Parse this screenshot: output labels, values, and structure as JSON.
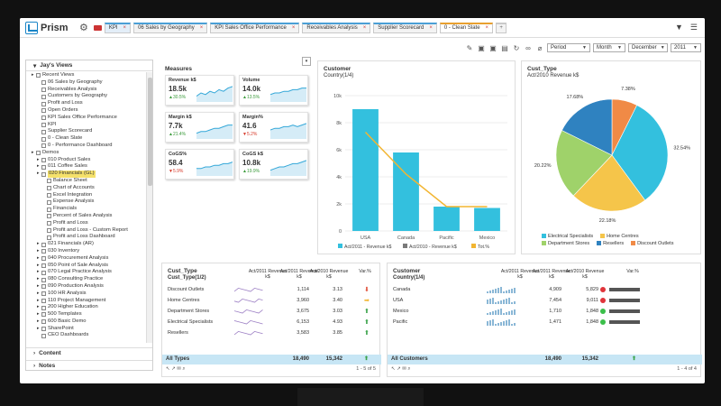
{
  "app": {
    "title": "Prism",
    "tabs": [
      {
        "label": "KPI",
        "kind": "kpi"
      },
      {
        "label": "06 Sales by Geography"
      },
      {
        "label": "KPI Sales Office Performance"
      },
      {
        "label": "Receivables Analysis"
      },
      {
        "label": "Supplier Scorecard"
      },
      {
        "label": "0 - Clean Slate",
        "active": true
      }
    ],
    "add_tab": "+"
  },
  "filters": {
    "period": "Period",
    "unit": "Month",
    "month": "December",
    "year": "2011"
  },
  "sidebar": {
    "title": "Jay's Views",
    "items": [
      {
        "label": "Recent Views",
        "lvl": 0,
        "folder": true
      },
      {
        "label": "06 Sales by Geography",
        "lvl": 1
      },
      {
        "label": "Receivables Analysis",
        "lvl": 1
      },
      {
        "label": "Customers by Geography",
        "lvl": 1
      },
      {
        "label": "Profit and Loss",
        "lvl": 1
      },
      {
        "label": "Open Orders",
        "lvl": 1
      },
      {
        "label": "KPI Sales Office Performance",
        "lvl": 1
      },
      {
        "label": "KPI",
        "lvl": 1
      },
      {
        "label": "Supplier Scorecard",
        "lvl": 1
      },
      {
        "label": "0 - Clean Slate",
        "lvl": 1
      },
      {
        "label": "0 - Performance Dashboard",
        "lvl": 1
      },
      {
        "label": "Demos",
        "lvl": 0,
        "folder": true
      },
      {
        "label": "010 Product Sales",
        "lvl": 1,
        "folder": true
      },
      {
        "label": "011 Coffee Sales",
        "lvl": 1,
        "folder": true
      },
      {
        "label": "020 Financials (GL)",
        "lvl": 1,
        "folder": true,
        "selected": true
      },
      {
        "label": "Balance Sheet",
        "lvl": 2
      },
      {
        "label": "Chart of Accounts",
        "lvl": 2
      },
      {
        "label": "Excel Integration",
        "lvl": 2
      },
      {
        "label": "Expense Analysis",
        "lvl": 2
      },
      {
        "label": "Financials",
        "lvl": 2
      },
      {
        "label": "Percent of Sales Analysis",
        "lvl": 2
      },
      {
        "label": "Profit and Loss",
        "lvl": 2
      },
      {
        "label": "Profit and Loss - Custom Report",
        "lvl": 2
      },
      {
        "label": "Profit and Loss Dashboard",
        "lvl": 2
      },
      {
        "label": "021 Financials (AR)",
        "lvl": 1,
        "folder": true
      },
      {
        "label": "030 Inventory",
        "lvl": 1,
        "folder": true
      },
      {
        "label": "040 Procurement Analysis",
        "lvl": 1,
        "folder": true
      },
      {
        "label": "050 Point of Sale Analysis",
        "lvl": 1,
        "folder": true
      },
      {
        "label": "070 Legal Practice Analysis",
        "lvl": 1,
        "folder": true
      },
      {
        "label": "080 Consulting Practice",
        "lvl": 1,
        "folder": true
      },
      {
        "label": "090 Production Analysis",
        "lvl": 1,
        "folder": true
      },
      {
        "label": "100 HR Analysis",
        "lvl": 1,
        "folder": true
      },
      {
        "label": "110 Project Management",
        "lvl": 1,
        "folder": true
      },
      {
        "label": "200 Higher Education",
        "lvl": 1,
        "folder": true
      },
      {
        "label": "500 Templates",
        "lvl": 1,
        "folder": true
      },
      {
        "label": "600 Basic Demo",
        "lvl": 1,
        "folder": true
      },
      {
        "label": "SharePoint",
        "lvl": 1,
        "folder": true
      },
      {
        "label": "CEO Dashboards",
        "lvl": 1
      }
    ],
    "footer": [
      "Content",
      "Notes"
    ]
  },
  "measures": {
    "title": "Measures",
    "cards": [
      {
        "name": "Revenue k$",
        "value": "18.5k",
        "change": "30.5%",
        "dir": "up"
      },
      {
        "name": "Volume",
        "value": "14.0k",
        "change": "13.5%",
        "dir": "up"
      },
      {
        "name": "Margin k$",
        "value": "7.7k",
        "change": "21.4%",
        "dir": "up"
      },
      {
        "name": "Margin%",
        "value": "41.6",
        "change": "5.2%",
        "dir": "dn"
      },
      {
        "name": "CoGS%",
        "value": "58.4",
        "change": "5.9%",
        "dir": "dn"
      },
      {
        "name": "CoGS k$",
        "value": "10.8k",
        "change": "19.9%",
        "dir": "up"
      }
    ]
  },
  "customer_chart": {
    "title": "Customer",
    "subtitle": "Country(1/4)",
    "legend": [
      "Act/2011 - Revenue k$",
      "Act/2010 - Revenue k$",
      "Tot.%"
    ]
  },
  "pie_chart": {
    "title": "Cust_Type",
    "subtitle": "Act/2010 Revenue k$",
    "legend": [
      {
        "label": "Electrical Specialists",
        "color": "#33c0de"
      },
      {
        "label": "Home Centres",
        "color": "#f5c54a"
      },
      {
        "label": "Department Stores",
        "color": "#9fd26a"
      },
      {
        "label": "Resellers",
        "color": "#2f82c0"
      },
      {
        "label": "Discount Outlets",
        "color": "#f08a46"
      }
    ]
  },
  "chart_data": [
    {
      "type": "bar",
      "title": "Customer",
      "subtitle": "Country(1/4)",
      "categories": [
        "USA",
        "Canada",
        "Pacific",
        "Mexico"
      ],
      "series": [
        {
          "name": "Act/2011 - Revenue k$",
          "values": [
            9000,
            5800,
            1800,
            1700
          ]
        },
        {
          "name": "Act/2010 - Revenue k$",
          "values": [
            9100,
            5850,
            1850,
            1750
          ]
        },
        {
          "name": "Tot.%",
          "values": [
            7300,
            4200,
            1800,
            1800
          ]
        }
      ],
      "ylim": [
        0,
        10000
      ],
      "yticks": [
        "0",
        "2k",
        "4k",
        "6k",
        "8k",
        "10k"
      ]
    },
    {
      "type": "pie",
      "title": "Cust_Type",
      "subtitle": "Act/2010 Revenue k$",
      "labels": [
        "Electrical Specialists",
        "Home Centres",
        "Department Stores",
        "Resellers",
        "Discount Outlets"
      ],
      "values": [
        32.54,
        22.18,
        20.22,
        17.68,
        7.38
      ],
      "value_labels": [
        "32.54%",
        "22.18%",
        "20.22%",
        "17.68%",
        "7.38%"
      ],
      "colors": [
        "#33c0de",
        "#f5c54a",
        "#9fd26a",
        "#2f82c0",
        "#f08a46"
      ]
    }
  ],
  "cust_type_table": {
    "title": "Cust_Type",
    "col0": "Cust_Type(1/2)",
    "headers": [
      "Act/2011 Revenue k$",
      "Act/2011 Revenue k$",
      "Act/2010 Revenue k$",
      "Var.%"
    ],
    "rows": [
      {
        "name": "Discount Outlets",
        "v1": "1,114",
        "v2": "3.13",
        "arrow": "dn"
      },
      {
        "name": "Home Centres",
        "v1": "3,960",
        "v2": "3.40",
        "arrow": "side"
      },
      {
        "name": "Department Stores",
        "v1": "3,675",
        "v2": "3.03",
        "arrow": "up"
      },
      {
        "name": "Electrical Specialists",
        "v1": "6,153",
        "v2": "4.93",
        "arrow": "up"
      },
      {
        "name": "Resellers",
        "v1": "3,583",
        "v2": "3.85",
        "arrow": "up"
      }
    ],
    "total": {
      "name": "All Types",
      "v1": "18,490",
      "v2": "15,342"
    },
    "pager": "1 - 5 of 5"
  },
  "customer_table": {
    "title": "Customer",
    "col0": "Country(1/4)",
    "headers": [
      "Act/2011 Revenue k$",
      "Act/2011 Revenue k$",
      "Act/2010 Revenue k$",
      "Var.%"
    ],
    "rows": [
      {
        "name": "Canada",
        "v1": "4,909",
        "v2": "5,829",
        "dot": "red"
      },
      {
        "name": "USA",
        "v1": "7,454",
        "v2": "9,011",
        "dot": "red"
      },
      {
        "name": "Mexico",
        "v1": "1,710",
        "v2": "1,848",
        "dot": "green"
      },
      {
        "name": "Pacific",
        "v1": "1,471",
        "v2": "1,848",
        "dot": "green"
      }
    ],
    "total": {
      "name": "All Customers",
      "v1": "18,490",
      "v2": "15,342"
    },
    "pager": "1 - 4 of 4"
  }
}
